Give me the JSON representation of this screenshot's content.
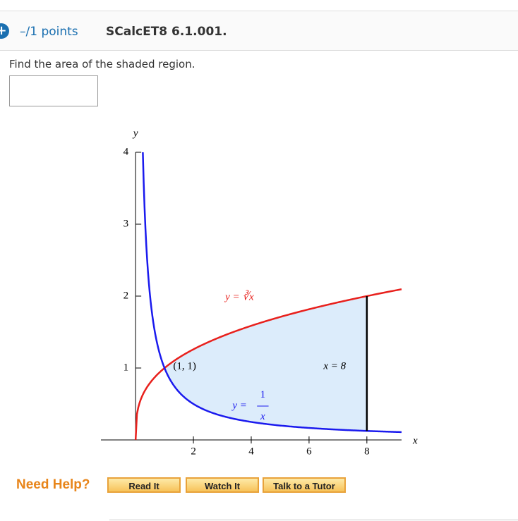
{
  "header": {
    "points": "–/1 points",
    "problem_id": "SCalcET8 6.1.001."
  },
  "question": "Find the area of the shaded region.",
  "figure": {
    "x_label": "x",
    "y_label": "y",
    "xlim": [
      -1.2,
      9.2
    ],
    "ylim": [
      0,
      4
    ],
    "xticks": [
      2,
      4,
      6,
      8
    ],
    "yticks": [
      1,
      2,
      3,
      4
    ],
    "region": {
      "x": [
        1,
        8
      ]
    },
    "curve_top_label": "y = ∛x",
    "curve_bottom_label": {
      "lhs": "y =",
      "num": "1",
      "den": "x"
    },
    "point_label": "(1, 1)",
    "line_label": "x = 8"
  },
  "help": {
    "label": "Need Help?",
    "buttons": [
      "Read It",
      "Watch It",
      "Talk to a Tutor"
    ]
  }
}
